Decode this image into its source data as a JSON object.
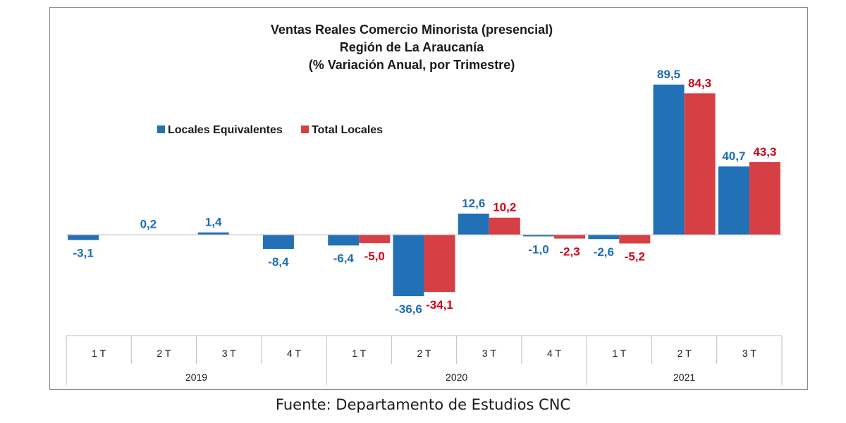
{
  "chart_data": {
    "type": "bar",
    "title": [
      "Ventas Reales Comercio Minorista  (presencial)",
      "Región de La Araucanía",
      "(% Variación Anual, por Trimestre)"
    ],
    "categories": [
      "1 T",
      "2 T",
      "3 T",
      "4 T",
      "1 T",
      "2 T",
      "3 T",
      "4 T",
      "1 T",
      "2 T",
      "3 T"
    ],
    "year_groups": [
      {
        "label": "2019",
        "count": 4
      },
      {
        "label": "2020",
        "count": 4
      },
      {
        "label": "2021",
        "count": 3
      }
    ],
    "series": [
      {
        "name": "Locales Equivalentes",
        "color": "#2270B6",
        "label_color": "#1F6DB5",
        "values": [
          -3.1,
          0.2,
          1.4,
          -8.4,
          -6.4,
          -36.6,
          12.6,
          -1.0,
          -2.6,
          89.5,
          40.7
        ],
        "labels": [
          "-3,1",
          "0,2",
          "1,4",
          "-8,4",
          "-6,4",
          "-36,6",
          "12,6",
          "-1,0",
          "-2,6",
          "89,5",
          "40,7"
        ]
      },
      {
        "name": "Total Locales",
        "color": "#D64045",
        "label_color": "#D0021B",
        "values": [
          null,
          null,
          null,
          null,
          -5.0,
          -34.1,
          10.2,
          -2.3,
          -5.2,
          84.3,
          43.3
        ],
        "labels": [
          null,
          null,
          null,
          null,
          "-5,0",
          "-34,1",
          "10,2",
          "-2,3",
          "-5,2",
          "84,3",
          "43,3"
        ]
      }
    ],
    "legend_position": "top-left",
    "grid": false,
    "xlabel": "",
    "ylabel": ""
  },
  "footer": {
    "source": "Fuente: Departamento de Estudios CNC"
  }
}
